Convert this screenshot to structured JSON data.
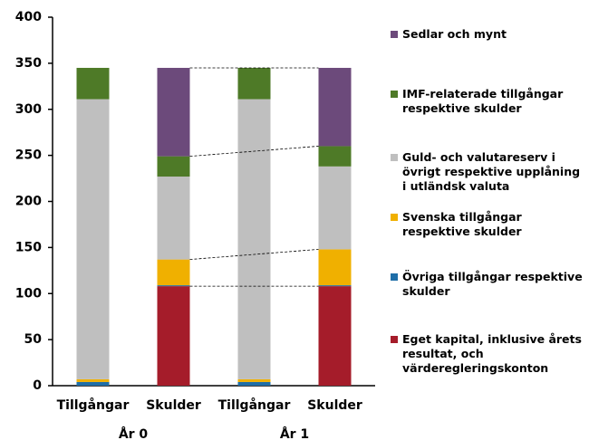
{
  "chart_data": {
    "type": "stacked_bar",
    "categories": [
      "Tillgångar",
      "Skulder",
      "Tillgångar",
      "Skulder"
    ],
    "groups": [
      "År 0",
      "År 1"
    ],
    "ylim": [
      0,
      400
    ],
    "yticks": [
      0,
      50,
      100,
      150,
      200,
      250,
      300,
      350,
      400
    ],
    "grid": false,
    "legend": "right",
    "series": [
      {
        "name": "Eget kapital, inklusive årets resultat, och värderegleringskonton",
        "color": "#a51c2a",
        "values": [
          0,
          108,
          0,
          108
        ]
      },
      {
        "name": "Övriga tillgångar respektive skulder",
        "color": "#1f6ea8",
        "values": [
          4,
          1,
          4,
          1
        ]
      },
      {
        "name": "Svenska tillgångar respektive skulder",
        "color": "#f0b000",
        "values": [
          3,
          28,
          3,
          39
        ]
      },
      {
        "name": "Guld- och valutareserv i övrigt respektive upplåning i utländsk valuta",
        "color": "#bfbfbf",
        "values": [
          304,
          90,
          304,
          90
        ]
      },
      {
        "name": "IMF-relaterade tillgångar respektive skulder",
        "color": "#4e7a27",
        "values": [
          34,
          22,
          34,
          22
        ]
      },
      {
        "name": "Sedlar och mynt",
        "color": "#6c4a7b",
        "values": [
          0,
          96,
          0,
          85
        ]
      }
    ]
  }
}
